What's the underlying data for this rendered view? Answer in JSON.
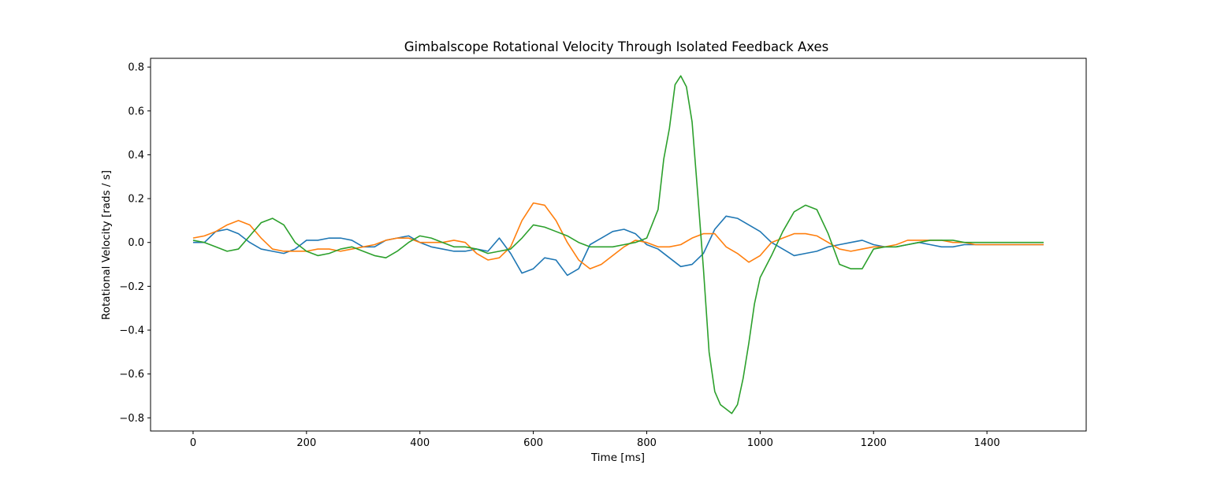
{
  "chart_data": {
    "type": "line",
    "title": "Gimbalscope Rotational Velocity Through Isolated Feedback Axes",
    "xlabel": "Time [ms]",
    "ylabel": "Rotational Velocity [rads / s]",
    "xlim": [
      -75,
      1575
    ],
    "ylim": [
      -0.86,
      0.84
    ],
    "xticks": [
      0,
      200,
      400,
      600,
      800,
      1000,
      1200,
      1400
    ],
    "xtick_labels": [
      "0",
      "200",
      "400",
      "600",
      "800",
      "1000",
      "1200",
      "1400"
    ],
    "yticks": [
      -0.8,
      -0.6,
      -0.4,
      -0.2,
      0.0,
      0.2,
      0.4,
      0.6,
      0.8
    ],
    "ytick_labels": [
      "−0.8",
      "−0.6",
      "−0.4",
      "−0.2",
      "0.0",
      "0.2",
      "0.4",
      "0.6",
      "0.8"
    ],
    "grid": false,
    "legend": "none",
    "series": [
      {
        "color": "#1f77b4",
        "x": [
          0,
          20,
          40,
          60,
          80,
          100,
          120,
          140,
          160,
          180,
          200,
          220,
          240,
          260,
          280,
          300,
          320,
          340,
          360,
          380,
          400,
          420,
          440,
          460,
          480,
          500,
          520,
          540,
          560,
          580,
          600,
          620,
          640,
          660,
          680,
          700,
          720,
          740,
          760,
          780,
          800,
          820,
          840,
          860,
          880,
          900,
          920,
          940,
          960,
          980,
          1000,
          1020,
          1040,
          1060,
          1080,
          1100,
          1120,
          1140,
          1160,
          1180,
          1200,
          1220,
          1240,
          1260,
          1280,
          1300,
          1320,
          1340,
          1360,
          1380,
          1400,
          1420,
          1440,
          1460,
          1480,
          1500
        ],
        "values": [
          0.0,
          0.0,
          0.05,
          0.06,
          0.04,
          0.0,
          -0.03,
          -0.04,
          -0.05,
          -0.03,
          0.01,
          0.01,
          0.02,
          0.02,
          0.01,
          -0.02,
          -0.02,
          0.01,
          0.02,
          0.03,
          0.0,
          -0.02,
          -0.03,
          -0.04,
          -0.04,
          -0.03,
          -0.04,
          0.02,
          -0.05,
          -0.14,
          -0.12,
          -0.07,
          -0.08,
          -0.15,
          -0.12,
          -0.01,
          0.02,
          0.05,
          0.06,
          0.04,
          -0.01,
          -0.03,
          -0.07,
          -0.11,
          -0.1,
          -0.05,
          0.06,
          0.12,
          0.11,
          0.08,
          0.05,
          0.0,
          -0.03,
          -0.06,
          -0.05,
          -0.04,
          -0.02,
          -0.01,
          0.0,
          0.01,
          -0.01,
          -0.02,
          -0.02,
          -0.01,
          0.0,
          -0.01,
          -0.02,
          -0.02,
          -0.01,
          -0.01,
          -0.01,
          -0.01,
          -0.01,
          -0.01,
          -0.01,
          -0.01
        ]
      },
      {
        "color": "#ff7f0e",
        "x": [
          0,
          20,
          40,
          60,
          80,
          100,
          120,
          140,
          160,
          180,
          200,
          220,
          240,
          260,
          280,
          300,
          320,
          340,
          360,
          380,
          400,
          420,
          440,
          460,
          480,
          500,
          520,
          540,
          560,
          580,
          600,
          620,
          640,
          660,
          680,
          700,
          720,
          740,
          760,
          780,
          800,
          820,
          840,
          860,
          880,
          900,
          920,
          940,
          960,
          980,
          1000,
          1020,
          1040,
          1060,
          1080,
          1100,
          1120,
          1140,
          1160,
          1180,
          1200,
          1220,
          1240,
          1260,
          1280,
          1300,
          1320,
          1340,
          1360,
          1380,
          1400,
          1420,
          1440,
          1460,
          1480,
          1500
        ],
        "values": [
          0.02,
          0.03,
          0.05,
          0.08,
          0.1,
          0.08,
          0.02,
          -0.03,
          -0.04,
          -0.04,
          -0.04,
          -0.03,
          -0.03,
          -0.04,
          -0.03,
          -0.02,
          -0.01,
          0.01,
          0.02,
          0.02,
          0.0,
          0.0,
          0.0,
          0.01,
          0.0,
          -0.05,
          -0.08,
          -0.07,
          -0.02,
          0.1,
          0.18,
          0.17,
          0.1,
          0.0,
          -0.08,
          -0.12,
          -0.1,
          -0.06,
          -0.02,
          0.01,
          0.0,
          -0.02,
          -0.02,
          -0.01,
          0.02,
          0.04,
          0.04,
          -0.02,
          -0.05,
          -0.09,
          -0.06,
          0.0,
          0.02,
          0.04,
          0.04,
          0.03,
          0.0,
          -0.03,
          -0.04,
          -0.03,
          -0.02,
          -0.02,
          -0.01,
          0.01,
          0.01,
          0.01,
          0.01,
          0.0,
          0.0,
          -0.01,
          -0.01,
          -0.01,
          -0.01,
          -0.01,
          -0.01,
          -0.01
        ]
      },
      {
        "color": "#2ca02c",
        "x": [
          0,
          20,
          40,
          60,
          80,
          100,
          120,
          140,
          160,
          180,
          200,
          220,
          240,
          260,
          280,
          300,
          320,
          340,
          360,
          380,
          400,
          420,
          440,
          460,
          480,
          500,
          520,
          540,
          560,
          580,
          600,
          620,
          640,
          660,
          680,
          700,
          720,
          740,
          760,
          780,
          800,
          820,
          830,
          840,
          850,
          860,
          870,
          880,
          890,
          900,
          910,
          920,
          930,
          940,
          950,
          960,
          970,
          980,
          990,
          1000,
          1020,
          1040,
          1060,
          1080,
          1100,
          1120,
          1140,
          1160,
          1180,
          1200,
          1220,
          1240,
          1260,
          1280,
          1300,
          1320,
          1340,
          1360,
          1380,
          1400,
          1420,
          1440,
          1460,
          1480,
          1500
        ],
        "values": [
          0.01,
          0.0,
          -0.02,
          -0.04,
          -0.03,
          0.03,
          0.09,
          0.11,
          0.08,
          0.0,
          -0.04,
          -0.06,
          -0.05,
          -0.03,
          -0.02,
          -0.04,
          -0.06,
          -0.07,
          -0.04,
          0.0,
          0.03,
          0.02,
          0.0,
          -0.02,
          -0.02,
          -0.03,
          -0.05,
          -0.04,
          -0.03,
          0.02,
          0.08,
          0.07,
          0.05,
          0.03,
          0.0,
          -0.02,
          -0.02,
          -0.02,
          -0.01,
          0.0,
          0.02,
          0.15,
          0.38,
          0.52,
          0.72,
          0.76,
          0.71,
          0.55,
          0.22,
          -0.12,
          -0.5,
          -0.68,
          -0.74,
          -0.76,
          -0.78,
          -0.74,
          -0.62,
          -0.46,
          -0.28,
          -0.16,
          -0.06,
          0.05,
          0.14,
          0.17,
          0.15,
          0.04,
          -0.1,
          -0.12,
          -0.12,
          -0.03,
          -0.02,
          -0.02,
          -0.01,
          0.0,
          0.01,
          0.01,
          0.01,
          0.0,
          0.0,
          0.0,
          0.0,
          0.0,
          0.0,
          0.0,
          0.0
        ]
      }
    ]
  }
}
